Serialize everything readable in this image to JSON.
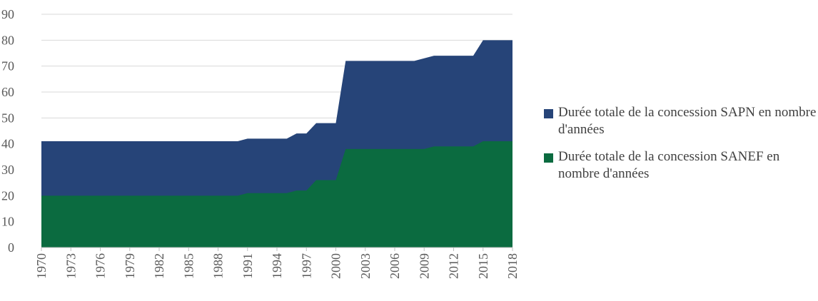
{
  "chart_data": {
    "type": "stacked_area",
    "x": [
      1970,
      1971,
      1972,
      1973,
      1974,
      1975,
      1976,
      1977,
      1978,
      1979,
      1980,
      1981,
      1982,
      1983,
      1984,
      1985,
      1986,
      1987,
      1988,
      1989,
      1990,
      1991,
      1992,
      1993,
      1994,
      1995,
      1996,
      1997,
      1998,
      1999,
      2000,
      2001,
      2002,
      2003,
      2004,
      2005,
      2006,
      2007,
      2008,
      2009,
      2010,
      2011,
      2012,
      2013,
      2014,
      2015,
      2016,
      2017,
      2018
    ],
    "xlim": [
      1970,
      2018
    ],
    "xticks": [
      1970,
      1973,
      1976,
      1979,
      1982,
      1985,
      1988,
      1991,
      1994,
      1997,
      2000,
      2003,
      2006,
      2009,
      2012,
      2015,
      2018
    ],
    "ylim": [
      0,
      90
    ],
    "yticks": [
      0,
      10,
      20,
      30,
      40,
      50,
      60,
      70,
      80,
      90
    ],
    "grid": true,
    "series": [
      {
        "name": "Durée totale de la concession SAPN en nombre d'années",
        "color": "#264478",
        "values": [
          21,
          21,
          21,
          21,
          21,
          21,
          21,
          21,
          21,
          21,
          21,
          21,
          21,
          21,
          21,
          21,
          21,
          21,
          21,
          21,
          21,
          21,
          21,
          21,
          21,
          21,
          22,
          22,
          22,
          22,
          22,
          34,
          34,
          34,
          34,
          34,
          34,
          34,
          34,
          35,
          35,
          35,
          35,
          35,
          35,
          39,
          39,
          39,
          39
        ]
      },
      {
        "name": "Durée totale de la concession SANEF en nombre d'années",
        "color": "#0b6b40",
        "values": [
          20,
          20,
          20,
          20,
          20,
          20,
          20,
          20,
          20,
          20,
          20,
          20,
          20,
          20,
          20,
          20,
          20,
          20,
          20,
          20,
          20,
          21,
          21,
          21,
          21,
          21,
          22,
          22,
          26,
          26,
          26,
          38,
          38,
          38,
          38,
          38,
          38,
          38,
          38,
          38,
          39,
          39,
          39,
          39,
          39,
          41,
          41,
          41,
          41
        ]
      }
    ]
  }
}
